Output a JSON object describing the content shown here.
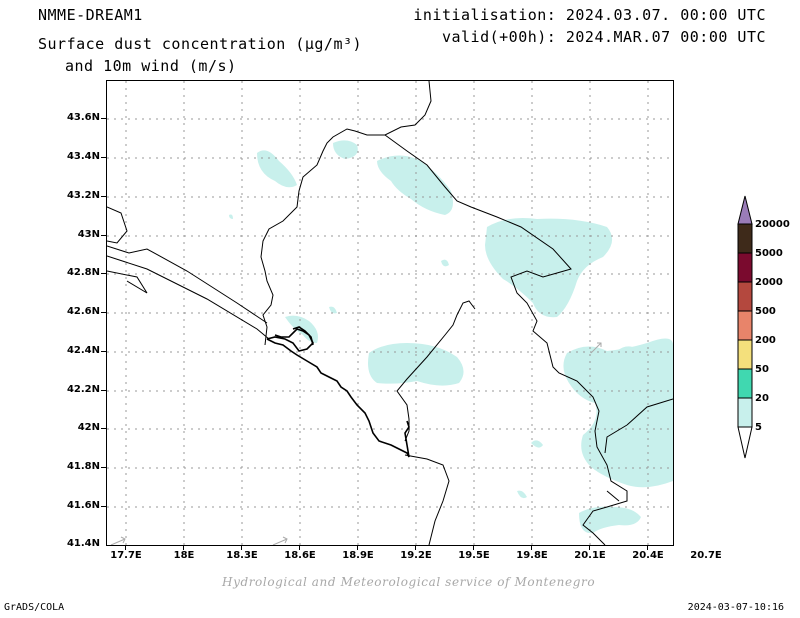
{
  "header": {
    "model": "NMME-DREAM1",
    "title_line1": "Surface dust concentration (µg/m³)",
    "title_line2": "and 10m wind (m/s)",
    "initialisation": "initialisation: 2024.03.07. 00:00 UTC",
    "valid": "valid(+00h): 2024.MAR.07 00:00 UTC"
  },
  "map": {
    "lat_labels": [
      "43.6N",
      "43.4N",
      "43.2N",
      "43N",
      "42.8N",
      "42.6N",
      "42.4N",
      "42.2N",
      "42N",
      "41.8N",
      "41.6N",
      "41.4N"
    ],
    "lon_labels": [
      "17.7E",
      "18E",
      "18.3E",
      "18.6E",
      "18.9E",
      "19.2E",
      "19.5E",
      "19.8E",
      "20.1E",
      "20.4E",
      "20.7E"
    ],
    "dust_color": "#c8f0ec",
    "grid_color": "#999999"
  },
  "colorbar": {
    "levels": [
      "20000",
      "5000",
      "2000",
      "500",
      "200",
      "50",
      "20",
      "5"
    ],
    "colors": [
      "#9a7cb8",
      "#3e2a1a",
      "#7a0a2e",
      "#b4483e",
      "#e8846a",
      "#f4e07c",
      "#40d8b0",
      "#c8f0ec",
      "#ffffff"
    ]
  },
  "footer": {
    "credit": "Hydrological and Meteorological service of Montenegro",
    "software": "GrADS/COLA",
    "timestamp": "2024-03-07-10:16"
  }
}
